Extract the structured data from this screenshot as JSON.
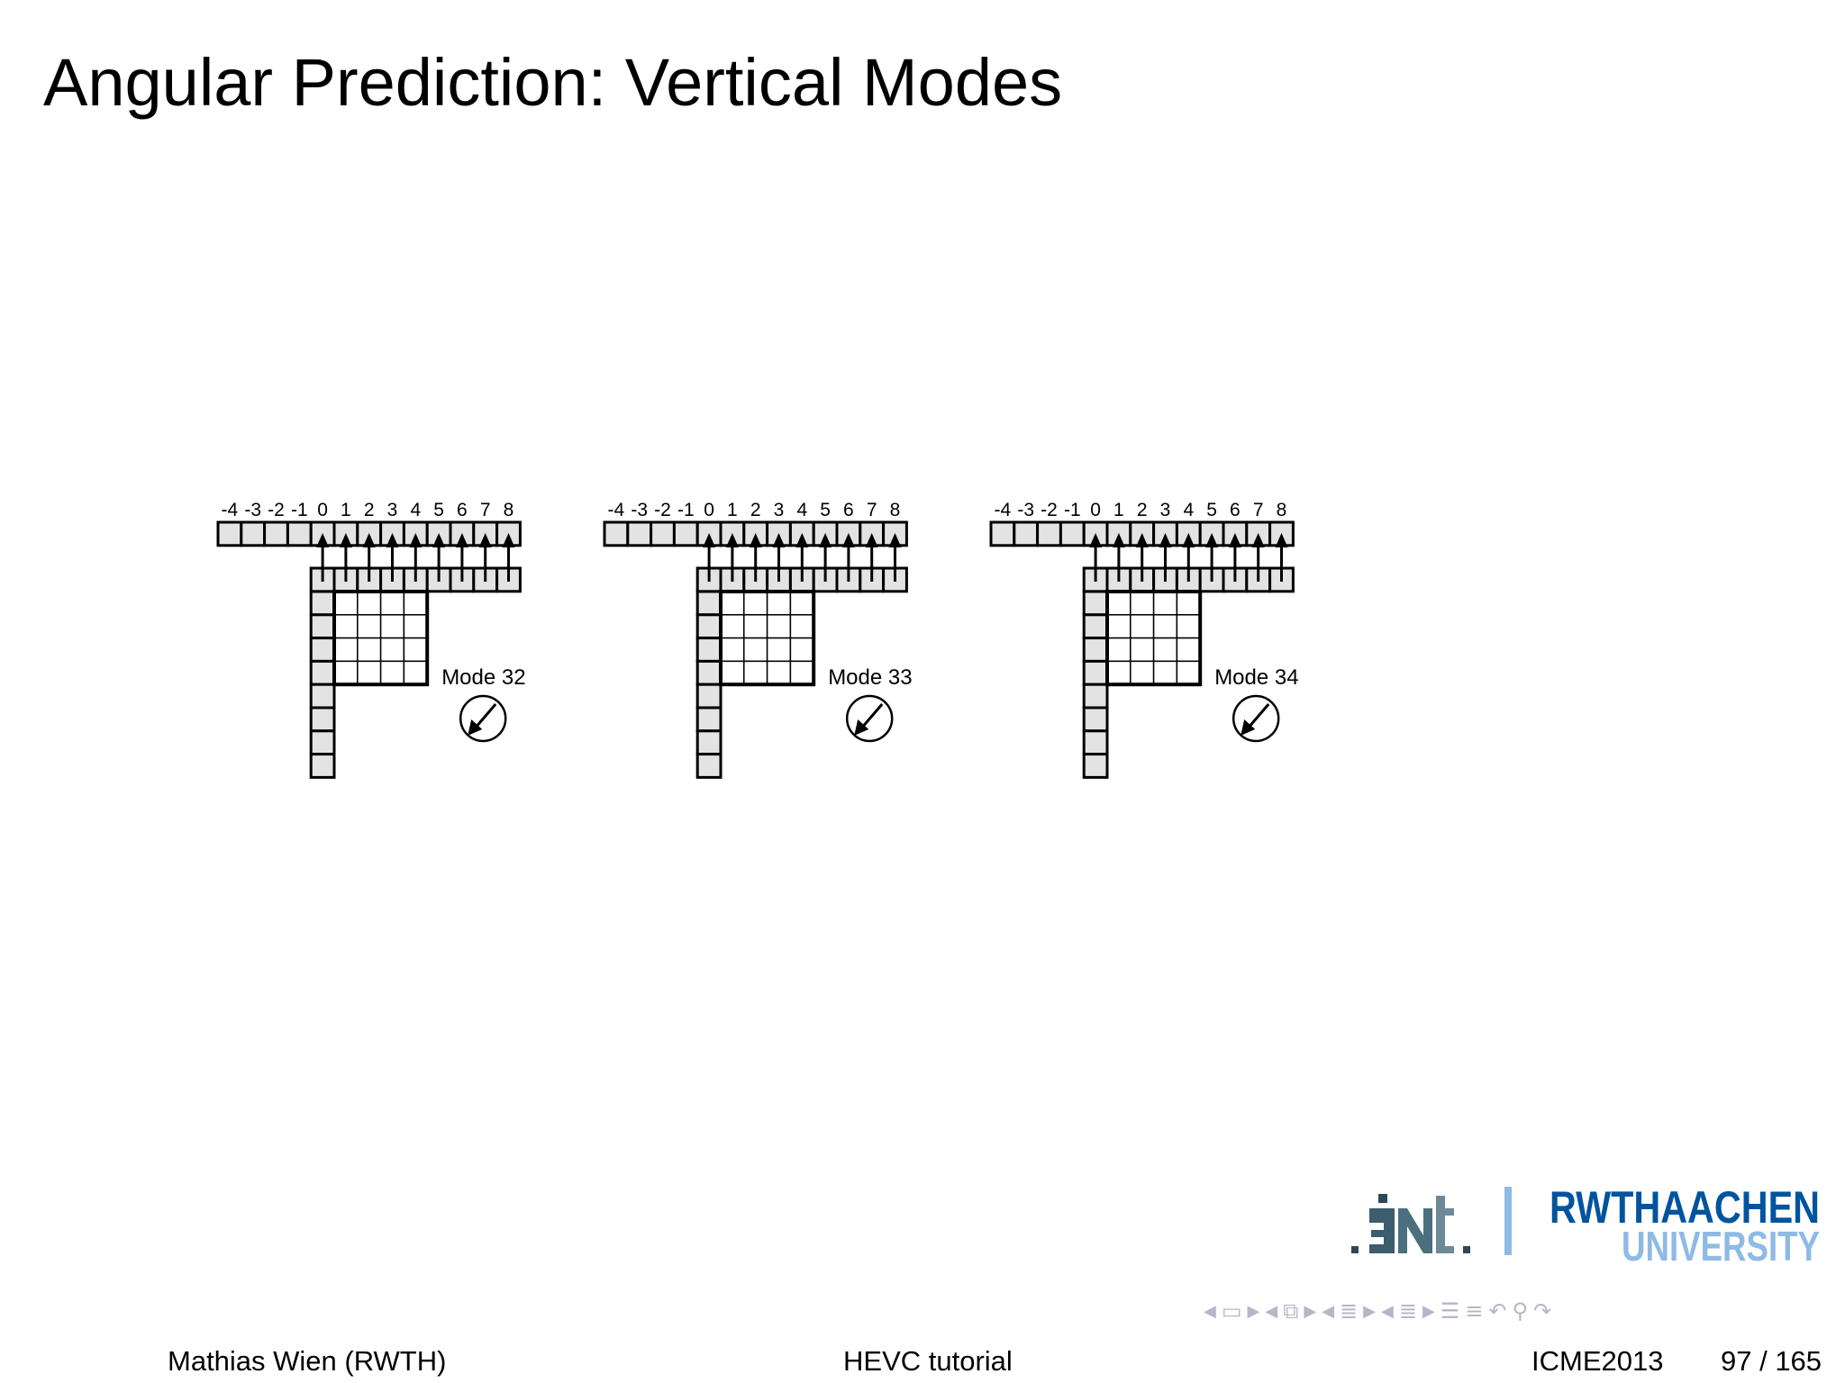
{
  "slide": {
    "title": "Angular Prediction: Vertical Modes"
  },
  "diagrams": [
    {
      "mode_label": "Mode 32"
    },
    {
      "mode_label": "Mode 33"
    },
    {
      "mode_label": "Mode 34"
    }
  ],
  "reference_indices": [
    "-4",
    "-3",
    "-2",
    "-1",
    "0",
    "1",
    "2",
    "3",
    "4",
    "5",
    "6",
    "7",
    "8"
  ],
  "logos": {
    "left": "ient",
    "right_line1": "RWTHAACHEN",
    "right_line2": "UNIVERSITY",
    "brand_color": "#00549f",
    "light_blue": "#8ebae5"
  },
  "navigation": {
    "icons": [
      "nav-left-arrow",
      "frame-icon",
      "nav-right-arrow",
      "nav-left-arrow",
      "subsection-icon",
      "nav-right-arrow",
      "nav-left-arrow",
      "section-icon",
      "nav-right-arrow",
      "nav-left-arrow",
      "section-icon",
      "nav-right-arrow",
      "appendix-icon",
      "align-icon",
      "undo-icon",
      "search-icon",
      "redo-icon"
    ]
  },
  "footer": {
    "author": "Mathias Wien  (RWTH)",
    "title": "HEVC tutorial",
    "event": "ICME2013",
    "page": "97 / 165"
  }
}
